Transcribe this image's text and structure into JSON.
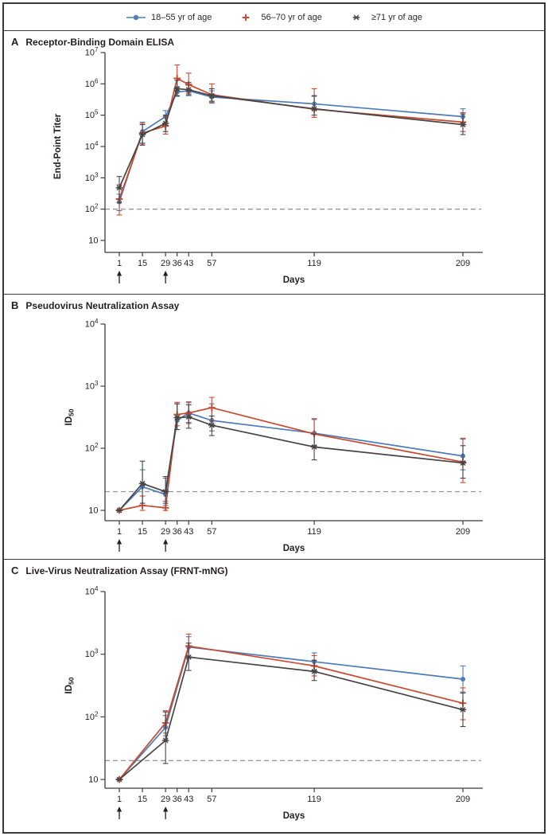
{
  "legend": {
    "items": [
      {
        "label": "18–55 yr of age",
        "color": "#4d7cb7",
        "marker": "circle"
      },
      {
        "label": "56–70 yr of age",
        "color": "#c9492f",
        "marker": "plus"
      },
      {
        "label": "≥71 yr of age",
        "color": "#474543",
        "marker": "asterisk"
      }
    ]
  },
  "xaxis": {
    "label": "Days",
    "tick_days": [
      1,
      15,
      29,
      36,
      43,
      57,
      119,
      209
    ],
    "vaccination_arrow_days": [
      1,
      29
    ]
  },
  "chart_data": [
    {
      "type": "line",
      "panel_letter": "A",
      "title": "Receptor-Binding Domain ELISA",
      "ylabel": "End-Point Titer",
      "ylabel_sub": "",
      "xlabel": "Days",
      "yscale": "log",
      "ylim": [
        10,
        10000000
      ],
      "ytick_exponents": [
        1,
        2,
        3,
        4,
        5,
        6,
        7
      ],
      "threshold_dashed_line": 100,
      "xticks": [
        1,
        15,
        29,
        36,
        43,
        57,
        119,
        209
      ],
      "x_days": [
        1,
        15,
        29,
        36,
        43,
        57,
        119,
        209
      ],
      "series": [
        {
          "name": "18–55 yr of age",
          "color": "#4d7cb7",
          "marker": "circle",
          "values": [
            170,
            30000,
            90000,
            550000,
            600000,
            380000,
            230000,
            90000
          ],
          "ci_low": [
            90,
            13000,
            55000,
            400000,
            420000,
            240000,
            150000,
            50000
          ],
          "ci_high": [
            300,
            60000,
            140000,
            800000,
            900000,
            600000,
            400000,
            160000
          ]
        },
        {
          "name": "56–70 yr of age",
          "color": "#c9492f",
          "marker": "plus",
          "values": [
            210,
            27000,
            45000,
            1500000,
            950000,
            450000,
            155000,
            60000
          ],
          "ci_low": [
            65,
            12000,
            25000,
            600000,
            500000,
            260000,
            85000,
            30000
          ],
          "ci_high": [
            600,
            55000,
            90000,
            4000000,
            2200000,
            1000000,
            700000,
            120000
          ]
        },
        {
          "name": "≥71 yr of age",
          "color": "#474543",
          "marker": "asterisk",
          "values": [
            480,
            24000,
            55000,
            700000,
            650000,
            420000,
            160000,
            50000
          ],
          "ci_low": [
            160,
            11000,
            30000,
            420000,
            450000,
            280000,
            100000,
            24000
          ],
          "ci_high": [
            1100,
            50000,
            100000,
            1300000,
            1100000,
            700000,
            420000,
            110000
          ]
        }
      ]
    },
    {
      "type": "line",
      "panel_letter": "B",
      "title": "Pseudovirus Neutralization Assay",
      "ylabel": "ID",
      "ylabel_sub": "50",
      "xlabel": "Days",
      "yscale": "log",
      "ylim": [
        10,
        10000
      ],
      "ytick_exponents": [
        1,
        2,
        3,
        4
      ],
      "threshold_dashed_line": 20,
      "xticks": [
        1,
        15,
        29,
        36,
        43,
        57,
        119,
        209
      ],
      "x_days": [
        1,
        15,
        29,
        36,
        43,
        57,
        119,
        209
      ],
      "series": [
        {
          "name": "18–55 yr of age",
          "color": "#4d7cb7",
          "marker": "circle",
          "values": [
            10,
            24,
            18,
            280,
            370,
            280,
            175,
            75
          ],
          "ci_low": [
            10,
            12,
            12,
            200,
            260,
            190,
            110,
            45
          ],
          "ci_high": [
            10,
            45,
            33,
            520,
            540,
            520,
            290,
            140
          ]
        },
        {
          "name": "56–70 yr of age",
          "color": "#c9492f",
          "marker": "plus",
          "values": [
            10,
            12,
            11,
            350,
            370,
            450,
            170,
            60
          ],
          "ci_low": [
            10,
            10,
            10,
            230,
            250,
            280,
            110,
            28
          ],
          "ci_high": [
            10,
            17,
            14,
            550,
            560,
            660,
            300,
            145
          ]
        },
        {
          "name": "≥71 yr of age",
          "color": "#474543",
          "marker": "asterisk",
          "values": [
            10,
            27,
            20,
            310,
            320,
            235,
            105,
            58
          ],
          "ci_low": [
            10,
            13,
            13,
            200,
            210,
            160,
            65,
            33
          ],
          "ci_high": [
            10,
            62,
            35,
            520,
            500,
            330,
            170,
            110
          ]
        }
      ]
    },
    {
      "type": "line",
      "panel_letter": "C",
      "title": "Live-Virus Neutralization Assay (FRNT-mNG)",
      "ylabel": "ID",
      "ylabel_sub": "50",
      "xlabel": "Days",
      "yscale": "log",
      "ylim": [
        10,
        10000
      ],
      "ytick_exponents": [
        1,
        2,
        3,
        4
      ],
      "threshold_dashed_line": 20,
      "xticks": [
        1,
        15,
        29,
        36,
        43,
        57,
        119,
        209
      ],
      "x_days": [
        1,
        29,
        43,
        119,
        209
      ],
      "series": [
        {
          "name": "18–55 yr of age",
          "color": "#4d7cb7",
          "marker": "circle",
          "values": [
            10,
            68,
            1300,
            760,
            400
          ],
          "ci_low": [
            10,
            50,
            900,
            550,
            250
          ],
          "ci_high": [
            10,
            105,
            1900,
            1050,
            650
          ]
        },
        {
          "name": "56–70 yr of age",
          "color": "#c9492f",
          "marker": "plus",
          "values": [
            10,
            80,
            1350,
            650,
            165
          ],
          "ci_low": [
            10,
            55,
            900,
            450,
            90
          ],
          "ci_high": [
            10,
            125,
            2100,
            950,
            290
          ]
        },
        {
          "name": "≥71 yr of age",
          "color": "#474543",
          "marker": "asterisk",
          "values": [
            10,
            42,
            900,
            530,
            130
          ],
          "ci_low": [
            10,
            18,
            550,
            380,
            70
          ],
          "ci_high": [
            10,
            120,
            1500,
            800,
            240
          ]
        }
      ]
    }
  ]
}
